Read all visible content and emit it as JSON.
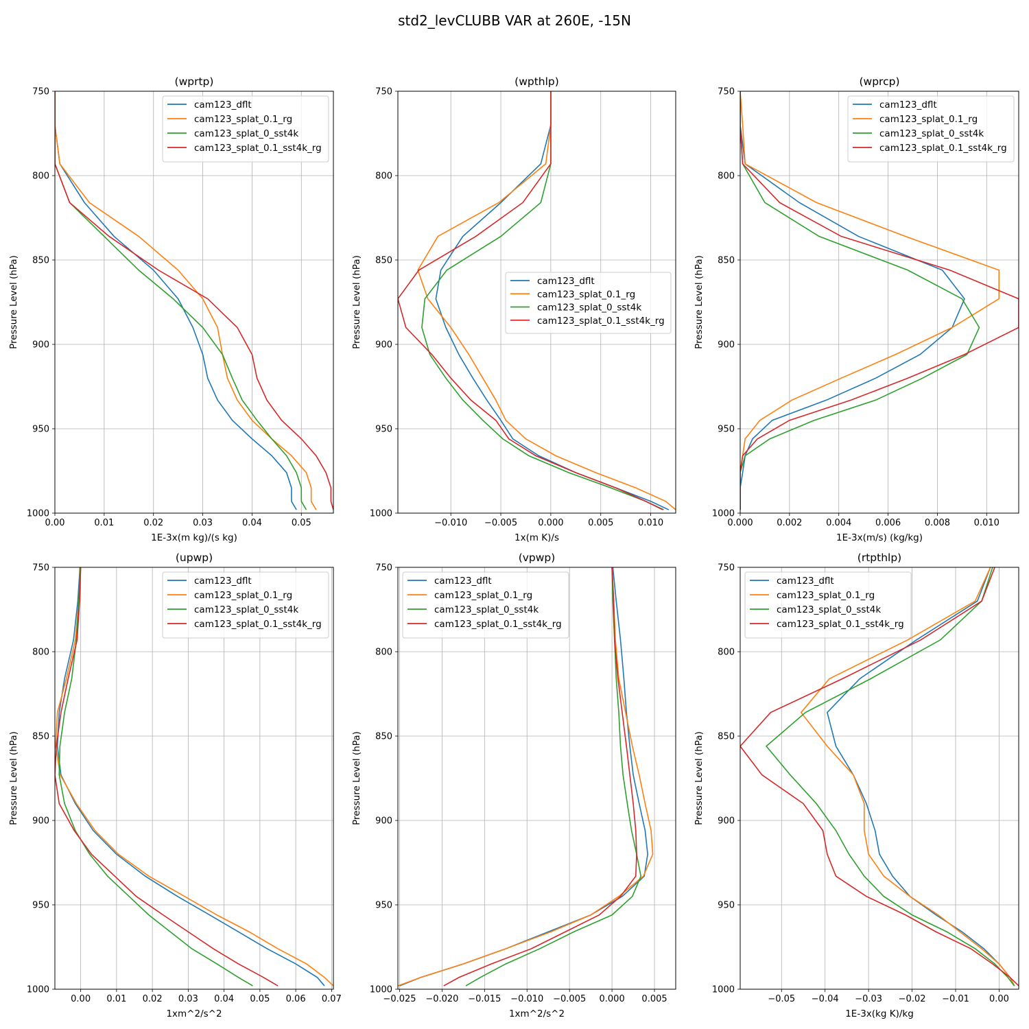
{
  "suptitle": "std2_levCLUBB VAR at 260E, -15N",
  "colors": [
    "#1f77b4",
    "#ff7f0e",
    "#2ca02c",
    "#d62728"
  ],
  "levels": [
    750,
    770,
    793,
    816,
    836,
    856,
    873,
    890,
    906,
    920,
    933,
    945,
    956,
    966,
    976,
    985,
    993,
    998
  ],
  "chart_data": [
    {
      "type": "line",
      "title": "(wprtp)",
      "xlabel": "1E-3x(m kg)/(s kg)",
      "ylabel": "Pressure Level (hPa)",
      "xlim": [
        0,
        0.0565
      ],
      "ylim": [
        1000,
        750
      ],
      "xticks": [
        0,
        0.01,
        0.02,
        0.03,
        0.04,
        0.05
      ],
      "xtick_labels": [
        "0.00",
        "0.01",
        "0.02",
        "0.03",
        "0.04",
        "0.05"
      ],
      "yticks": [
        750,
        800,
        850,
        900,
        950,
        1000
      ],
      "legend": "top-right",
      "series": [
        {
          "name": "cam123_dflt",
          "values": [
            0,
            0,
            0.001,
            0.006,
            0.012,
            0.02,
            0.025,
            0.028,
            0.03,
            0.031,
            0.033,
            0.036,
            0.04,
            0.044,
            0.047,
            0.048,
            0.048,
            0.049
          ]
        },
        {
          "name": "cam123_splat_0.1_rg",
          "values": [
            0,
            0,
            0.001,
            0.007,
            0.017,
            0.025,
            0.03,
            0.033,
            0.034,
            0.035,
            0.037,
            0.04,
            0.044,
            0.048,
            0.051,
            0.052,
            0.052,
            0.053
          ]
        },
        {
          "name": "cam123_splat_0_sst4k",
          "values": [
            0,
            0,
            0,
            0.003,
            0.01,
            0.017,
            0.024,
            0.03,
            0.034,
            0.036,
            0.038,
            0.041,
            0.044,
            0.047,
            0.049,
            0.05,
            0.05,
            0.051
          ]
        },
        {
          "name": "cam123_splat_0.1_sst4k_rg",
          "values": [
            0,
            0,
            0,
            0.003,
            0.011,
            0.021,
            0.031,
            0.037,
            0.04,
            0.041,
            0.043,
            0.046,
            0.05,
            0.053,
            0.055,
            0.056,
            0.056,
            0.0565
          ]
        }
      ]
    },
    {
      "type": "line",
      "title": "(wpthlp)",
      "xlabel": "1x(m K)/s",
      "ylabel": "Pressure Level (hPa)",
      "xlim": [
        -0.0153,
        0.0125
      ],
      "ylim": [
        1000,
        750
      ],
      "xticks": [
        -0.01,
        -0.005,
        0,
        0.005,
        0.01
      ],
      "xtick_labels": [
        "−0.010",
        "−0.005",
        "0.000",
        "0.005",
        "0.010"
      ],
      "yticks": [
        750,
        800,
        850,
        900,
        950,
        1000
      ],
      "legend": "center-right",
      "series": [
        {
          "name": "cam123_dflt",
          "values": [
            0,
            0,
            -0.001,
            -0.005,
            -0.0088,
            -0.011,
            -0.0115,
            -0.0105,
            -0.0092,
            -0.0078,
            -0.0064,
            -0.005,
            -0.0038,
            -0.0012,
            0.0025,
            0.0065,
            0.01,
            0.0118
          ]
        },
        {
          "name": "cam123_splat_0.1_rg",
          "values": [
            0,
            0,
            -0.0005,
            -0.0052,
            -0.0113,
            -0.0133,
            -0.0123,
            -0.01,
            -0.0082,
            -0.0068,
            -0.0055,
            -0.0045,
            -0.0025,
            0.0005,
            0.0045,
            0.0085,
            0.0115,
            0.0125
          ]
        },
        {
          "name": "cam123_splat_0_sst4k",
          "values": [
            0,
            0,
            0,
            -0.001,
            -0.005,
            -0.0104,
            -0.0126,
            -0.0129,
            -0.0121,
            -0.0105,
            -0.0088,
            -0.0068,
            -0.0048,
            -0.0022,
            0.0018,
            0.006,
            0.0095,
            0.0113
          ]
        },
        {
          "name": "cam123_splat_0.1_sst4k_rg",
          "values": [
            0,
            0,
            0,
            -0.0028,
            -0.0075,
            -0.0132,
            -0.0153,
            -0.0145,
            -0.0119,
            -0.01,
            -0.008,
            -0.0055,
            -0.0042,
            -0.0015,
            0.0025,
            0.0065,
            0.0095,
            0.0112
          ]
        }
      ]
    },
    {
      "type": "line",
      "title": "(wprcp)",
      "xlabel": "1E-3x(m/s) (kg/kg)",
      "ylabel": "Pressure Level (hPa)",
      "xlim": [
        0,
        0.0113
      ],
      "ylim": [
        1000,
        750
      ],
      "xticks": [
        0,
        0.002,
        0.004,
        0.006,
        0.008,
        0.01
      ],
      "xtick_labels": [
        "0.000",
        "0.002",
        "0.004",
        "0.006",
        "0.008",
        "0.010"
      ],
      "yticks": [
        750,
        800,
        850,
        900,
        950,
        1000
      ],
      "legend": "top-right",
      "series": [
        {
          "name": "cam123_dflt",
          "values": [
            0,
            0,
            0.0002,
            0.0024,
            0.0048,
            0.0082,
            0.0091,
            0.0086,
            0.0073,
            0.0055,
            0.0035,
            0.0013,
            0.0005,
            0.0002,
            0.0001,
            0,
            0,
            0
          ]
        },
        {
          "name": "cam123_splat_0.1_rg",
          "values": [
            0,
            0.0001,
            0.0002,
            0.0031,
            0.0067,
            0.0105,
            0.0105,
            0.0086,
            0.0063,
            0.0041,
            0.0021,
            0.0008,
            0.0002,
            0.0001,
            0,
            0,
            0,
            0
          ]
        },
        {
          "name": "cam123_splat_0_sst4k",
          "values": [
            0,
            0,
            0.0001,
            0.001,
            0.0032,
            0.0068,
            0.009,
            0.0097,
            0.0092,
            0.0074,
            0.0055,
            0.003,
            0.0012,
            0.0002,
            0,
            0,
            0,
            0
          ]
        },
        {
          "name": "cam123_splat_0.1_sst4k_rg",
          "values": [
            0,
            0,
            0.0001,
            0.0016,
            0.0041,
            0.0085,
            0.0113,
            0.0113,
            0.0091,
            0.0068,
            0.0045,
            0.002,
            0.0007,
            0.0001,
            0,
            0,
            0,
            0
          ]
        }
      ]
    },
    {
      "type": "line",
      "title": "(upwp)",
      "xlabel": "1xm^2/s^2",
      "ylabel": "Pressure Level (hPa)",
      "xlim": [
        -0.0072,
        0.0705
      ],
      "ylim": [
        1000,
        750
      ],
      "xticks": [
        0,
        0.01,
        0.02,
        0.03,
        0.04,
        0.05,
        0.06,
        0.07
      ],
      "xtick_labels": [
        "0.00",
        "0.01",
        "0.02",
        "0.03",
        "0.04",
        "0.05",
        "0.06",
        "0.07"
      ],
      "yticks": [
        750,
        800,
        850,
        900,
        950,
        1000
      ],
      "legend": "top-right",
      "series": [
        {
          "name": "cam123_dflt",
          "values": [
            -0.0002,
            -0.0008,
            -0.002,
            -0.0045,
            -0.006,
            -0.0065,
            -0.0055,
            -0.0015,
            0.0035,
            0.01,
            0.018,
            0.027,
            0.036,
            0.044,
            0.052,
            0.06,
            0.066,
            0.068
          ]
        },
        {
          "name": "cam123_splat_0.1_rg",
          "values": [
            0,
            -0.0005,
            -0.0015,
            -0.004,
            -0.0065,
            -0.007,
            -0.0057,
            -0.0012,
            0.004,
            0.0105,
            0.019,
            0.029,
            0.038,
            0.047,
            0.055,
            0.063,
            0.068,
            0.0705
          ]
        },
        {
          "name": "cam123_splat_0_sst4k",
          "values": [
            -0.0002,
            -0.0005,
            -0.0012,
            -0.0025,
            -0.0045,
            -0.0058,
            -0.006,
            -0.0045,
            -0.0015,
            0.0025,
            0.0075,
            0.0135,
            0.019,
            0.025,
            0.031,
            0.038,
            0.044,
            0.048
          ]
        },
        {
          "name": "cam123_splat_0.1_sst4k_rg",
          "values": [
            0,
            -0.0003,
            -0.001,
            -0.0035,
            -0.0055,
            -0.0068,
            -0.0072,
            -0.006,
            -0.0018,
            0.003,
            0.0095,
            0.0155,
            0.023,
            0.03,
            0.037,
            0.044,
            0.051,
            0.055
          ]
        }
      ]
    },
    {
      "type": "line",
      "title": "(vpwp)",
      "xlabel": "1xm^2/s^2",
      "ylabel": "Pressure Level (hPa)",
      "xlim": [
        -0.0252,
        0.0075
      ],
      "ylim": [
        1000,
        750
      ],
      "xticks": [
        -0.025,
        -0.02,
        -0.015,
        -0.01,
        -0.005,
        0,
        0.005
      ],
      "xtick_labels": [
        "−0.025",
        "−0.020",
        "−0.015",
        "−0.010",
        "−0.005",
        "0.000",
        "0.005"
      ],
      "yticks": [
        750,
        800,
        850,
        900,
        950,
        1000
      ],
      "legend": "top-left",
      "series": [
        {
          "name": "cam123_dflt",
          "values": [
            0.0001,
            0.0005,
            0.001,
            0.0014,
            0.0017,
            0.0021,
            0.0025,
            0.0032,
            0.0039,
            0.0042,
            0.0038,
            0.0012,
            -0.0025,
            -0.0075,
            -0.0125,
            -0.0175,
            -0.0225,
            -0.025
          ]
        },
        {
          "name": "cam123_splat_0.1_rg",
          "values": [
            0,
            0.0002,
            0.0004,
            0.0008,
            0.0016,
            0.0024,
            0.0032,
            0.0039,
            0.0046,
            0.0048,
            0.0037,
            0.0008,
            -0.0025,
            -0.0072,
            -0.0125,
            -0.0175,
            -0.0225,
            -0.0252
          ]
        },
        {
          "name": "cam123_splat_0_sst4k",
          "values": [
            0,
            0.0001,
            0.0003,
            0.0005,
            0.0008,
            0.001,
            0.0013,
            0.0018,
            0.0023,
            0.0029,
            0.0034,
            0.0024,
            0,
            -0.0045,
            -0.0085,
            -0.0125,
            -0.0155,
            -0.0172
          ]
        },
        {
          "name": "cam123_splat_0.1_sst4k_rg",
          "values": [
            0,
            0.0002,
            0.0003,
            0.0007,
            0.0012,
            0.0017,
            0.0021,
            0.0025,
            0.0028,
            0.0029,
            0.0028,
            0.001,
            -0.0015,
            -0.0055,
            -0.0095,
            -0.0142,
            -0.018,
            -0.0198
          ]
        }
      ]
    },
    {
      "type": "line",
      "title": "(rtpthlp)",
      "xlabel": "1E-3x(kg K)/kg",
      "ylabel": "Pressure Level (hPa)",
      "xlim": [
        -0.0595,
        0.0045
      ],
      "ylim": [
        1000,
        750
      ],
      "xticks": [
        -0.05,
        -0.04,
        -0.03,
        -0.02,
        -0.01,
        0
      ],
      "xtick_labels": [
        "−0.05",
        "−0.04",
        "−0.03",
        "−0.02",
        "−0.01",
        "0.00"
      ],
      "yticks": [
        750,
        800,
        850,
        900,
        950,
        1000
      ],
      "legend": "top-left",
      "series": [
        {
          "name": "cam123_dflt",
          "values": [
            -0.002,
            -0.005,
            -0.019,
            -0.032,
            -0.0395,
            -0.0375,
            -0.0335,
            -0.0305,
            -0.0285,
            -0.0275,
            -0.0245,
            -0.0205,
            -0.0145,
            -0.0085,
            -0.0035,
            0,
            0.0025,
            0.0035
          ]
        },
        {
          "name": "cam123_splat_0.1_rg",
          "values": [
            -0.002,
            -0.0055,
            -0.021,
            -0.039,
            -0.0455,
            -0.0395,
            -0.0335,
            -0.031,
            -0.031,
            -0.03,
            -0.0265,
            -0.0205,
            -0.014,
            -0.009,
            -0.004,
            0,
            0.0025,
            0.0035
          ]
        },
        {
          "name": "cam123_splat_0_sst4k",
          "values": [
            -0.0015,
            -0.004,
            -0.0135,
            -0.0295,
            -0.0445,
            -0.0535,
            -0.048,
            -0.042,
            -0.0375,
            -0.0345,
            -0.031,
            -0.0265,
            -0.02,
            -0.012,
            -0.0055,
            -0.001,
            0.002,
            0.0035
          ]
        },
        {
          "name": "cam123_splat_0.1_sst4k_rg",
          "values": [
            -0.001,
            -0.004,
            -0.018,
            -0.036,
            -0.0525,
            -0.0595,
            -0.0545,
            -0.045,
            -0.0405,
            -0.0395,
            -0.0375,
            -0.0305,
            -0.0215,
            -0.0145,
            -0.0065,
            -0.0015,
            0.0025,
            0.0045
          ]
        }
      ]
    }
  ]
}
